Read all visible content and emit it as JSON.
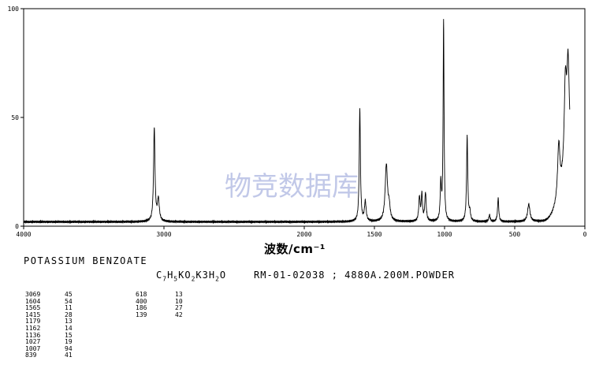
{
  "chart_data": {
    "type": "line",
    "title": "",
    "xlabel": "波数/cm⁻¹",
    "ylabel": "",
    "xlim": [
      4000,
      0
    ],
    "ylim": [
      0,
      100
    ],
    "x_ticks": [
      "4000",
      "3000",
      "2000",
      "1500",
      "1000",
      "500",
      "0"
    ],
    "y_ticks": [
      "0",
      "50",
      "100"
    ],
    "baseline": 2,
    "peaks": [
      {
        "x": 3069,
        "y": 45,
        "w": 6
      },
      {
        "x": 3040,
        "y": 12,
        "w": 8
      },
      {
        "x": 1604,
        "y": 54,
        "w": 5
      },
      {
        "x": 1565,
        "y": 11,
        "w": 7
      },
      {
        "x": 1415,
        "y": 28,
        "w": 10
      },
      {
        "x": 1395,
        "y": 8,
        "w": 8
      },
      {
        "x": 1179,
        "y": 13,
        "w": 6
      },
      {
        "x": 1162,
        "y": 14,
        "w": 5
      },
      {
        "x": 1136,
        "y": 15,
        "w": 6
      },
      {
        "x": 1027,
        "y": 19,
        "w": 5
      },
      {
        "x": 1007,
        "y": 94,
        "w": 4
      },
      {
        "x": 839,
        "y": 41,
        "w": 5
      },
      {
        "x": 820,
        "y": 6,
        "w": 6
      },
      {
        "x": 680,
        "y": 5,
        "w": 6
      },
      {
        "x": 618,
        "y": 13,
        "w": 5
      },
      {
        "x": 400,
        "y": 10,
        "w": 10
      },
      {
        "x": 186,
        "y": 27,
        "w": 10
      },
      {
        "x": 139,
        "y": 42,
        "w": 10
      },
      {
        "x": 120,
        "y": 45,
        "w": 10
      }
    ],
    "rise": {
      "start": 300,
      "end": 110,
      "to": 30
    }
  },
  "watermark": "物竞数据库",
  "compound_name": "POTASSIUM BENZOATE",
  "formula": {
    "p1": "C",
    "s1": "7",
    "p2": "H",
    "s2": "5",
    "p3": "KO",
    "s3": "2",
    "p4": "K3H",
    "s4": "2",
    "p5": "O"
  },
  "sample_info": "RM-01-02038 ; 4880A.200M.POWDER",
  "peak_table": {
    "col1": [
      {
        "w": "3069",
        "i": "45"
      },
      {
        "w": "1604",
        "i": "54"
      },
      {
        "w": "1565",
        "i": "11"
      },
      {
        "w": "1415",
        "i": "28"
      },
      {
        "w": "1179",
        "i": "13"
      },
      {
        "w": "1162",
        "i": "14"
      },
      {
        "w": "1136",
        "i": "15"
      },
      {
        "w": "1027",
        "i": "19"
      },
      {
        "w": "1007",
        "i": "94"
      },
      {
        "w": "839",
        "i": "41"
      }
    ],
    "col2": [
      {
        "w": "618",
        "i": "13"
      },
      {
        "w": "400",
        "i": "10"
      },
      {
        "w": "186",
        "i": "27"
      },
      {
        "w": "139",
        "i": "42"
      }
    ]
  }
}
